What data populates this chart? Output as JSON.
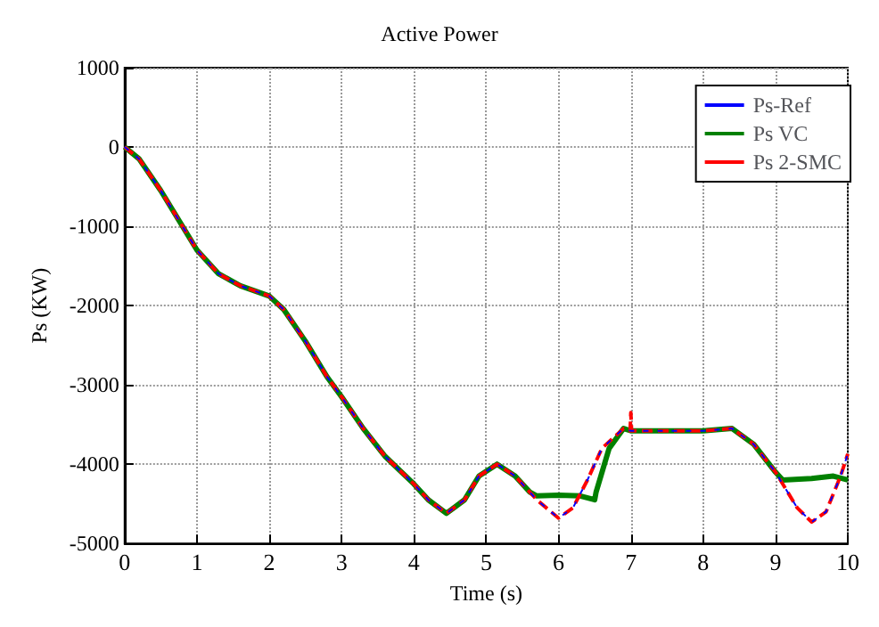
{
  "chart_data": {
    "type": "line",
    "title": "Active Power",
    "xlabel": "Time (s)",
    "ylabel": "Ps (KW)",
    "xlim": [
      0,
      10
    ],
    "ylim": [
      -5000,
      1000
    ],
    "xticks": [
      0,
      1,
      2,
      3,
      4,
      5,
      6,
      7,
      8,
      9,
      10
    ],
    "yticks": [
      -5000,
      -4000,
      -3000,
      -2000,
      -1000,
      0,
      1000
    ],
    "grid": true,
    "legend": "top right",
    "marker": "none",
    "series": [
      {
        "name": "Ps-Ref",
        "color": "#0000ff",
        "line_style": "dashed",
        "x": [
          0,
          0.2,
          0.5,
          0.8,
          1,
          1.3,
          1.6,
          2,
          2.2,
          2.5,
          2.8,
          3,
          3.3,
          3.6,
          4,
          4.2,
          4.45,
          4.7,
          4.9,
          5.15,
          5.4,
          5.7,
          6,
          6.2,
          6.4,
          6.6,
          6.9,
          7,
          7.5,
          8,
          8.4,
          8.7,
          9,
          9.3,
          9.5,
          9.7,
          9.9,
          10
        ],
        "values": [
          0,
          -150,
          -550,
          -1000,
          -1300,
          -1600,
          -1750,
          -1880,
          -2050,
          -2450,
          -2900,
          -3150,
          -3550,
          -3900,
          -4250,
          -4450,
          -4620,
          -4450,
          -4150,
          -4000,
          -4150,
          -4450,
          -4680,
          -4550,
          -4200,
          -3800,
          -3550,
          -3580,
          -3580,
          -3580,
          -3550,
          -3750,
          -4100,
          -4550,
          -4730,
          -4600,
          -4150,
          -3870
        ]
      },
      {
        "name": "Ps VC",
        "color": "#008000",
        "line_style": "solid",
        "x": [
          0,
          0.2,
          0.5,
          0.8,
          1,
          1.3,
          1.6,
          2,
          2.2,
          2.5,
          2.8,
          3,
          3.3,
          3.6,
          4,
          4.2,
          4.45,
          4.7,
          4.9,
          5.15,
          5.4,
          5.6,
          5.7,
          6,
          6.3,
          6.5,
          6.52,
          6.7,
          6.9,
          7,
          7.5,
          8,
          8.4,
          8.7,
          9,
          9.1,
          9.5,
          9.8,
          10
        ],
        "values": [
          0,
          -150,
          -550,
          -1000,
          -1300,
          -1600,
          -1750,
          -1880,
          -2050,
          -2450,
          -2900,
          -3150,
          -3550,
          -3900,
          -4250,
          -4450,
          -4620,
          -4450,
          -4150,
          -4000,
          -4150,
          -4350,
          -4400,
          -4390,
          -4400,
          -4450,
          -4350,
          -3800,
          -3550,
          -3580,
          -3580,
          -3580,
          -3550,
          -3750,
          -4100,
          -4200,
          -4180,
          -4150,
          -4200
        ]
      },
      {
        "name": "Ps 2-SMC",
        "color": "#ff0000",
        "line_style": "dashed",
        "x": [
          0,
          0.2,
          0.5,
          0.8,
          1,
          1.3,
          1.6,
          2,
          2.2,
          2.5,
          2.8,
          3,
          3.3,
          3.6,
          4,
          4.2,
          4.45,
          4.7,
          4.9,
          5.15,
          5.4,
          5.7,
          6,
          6.2,
          6.4,
          6.6,
          6.9,
          6.99,
          7,
          7.01,
          7.5,
          8,
          8.4,
          8.7,
          9,
          9.3,
          9.5,
          9.7,
          9.9,
          10
        ],
        "values": [
          0,
          -150,
          -550,
          -1000,
          -1300,
          -1600,
          -1750,
          -1880,
          -2050,
          -2450,
          -2900,
          -3150,
          -3550,
          -3900,
          -4250,
          -4450,
          -4620,
          -4450,
          -4150,
          -4000,
          -4150,
          -4450,
          -4680,
          -4550,
          -4200,
          -3800,
          -3550,
          -3580,
          -3350,
          -3580,
          -3580,
          -3580,
          -3550,
          -3750,
          -4100,
          -4550,
          -4730,
          -4600,
          -4150,
          -3870
        ]
      }
    ]
  }
}
